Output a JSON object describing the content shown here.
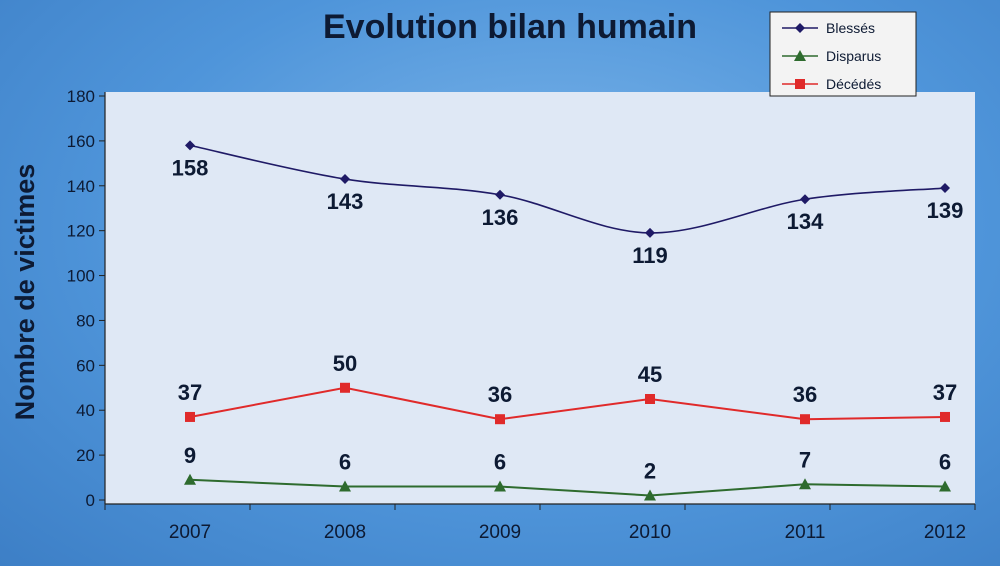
{
  "chart_data": {
    "type": "line",
    "title": "Evolution bilan humain",
    "xlabel": "",
    "ylabel": "Nombre de victimes",
    "categories": [
      "2007",
      "2008",
      "2009",
      "2010",
      "2011",
      "2012"
    ],
    "ylim": [
      0,
      180
    ],
    "yticks": [
      0,
      20,
      40,
      60,
      80,
      100,
      120,
      140,
      160,
      180
    ],
    "grid": false,
    "legend_position": "top-right",
    "series": [
      {
        "name": "Blessés",
        "values": [
          158,
          143,
          136,
          119,
          134,
          139
        ],
        "color": "#1f1a66",
        "marker": "diamond",
        "smooth": true
      },
      {
        "name": "Disparus",
        "values": [
          9,
          6,
          6,
          2,
          7,
          6
        ],
        "color": "#2e6b2e",
        "marker": "triangle",
        "smooth": false
      },
      {
        "name": "Décédés",
        "values": [
          37,
          50,
          36,
          45,
          36,
          37
        ],
        "color": "#e02a2a",
        "marker": "square",
        "smooth": false
      }
    ]
  }
}
